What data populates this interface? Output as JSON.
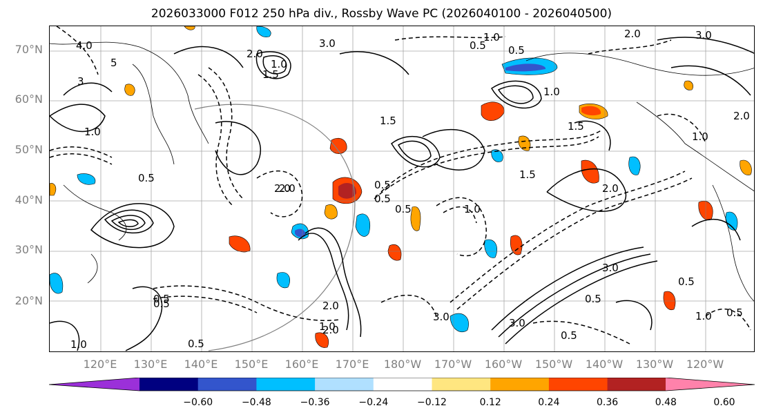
{
  "title": "2026033000 F012 250 hPa div., Rossby Wave PC (2026040100 - 2026040500)",
  "lat_labels": [
    "70°N",
    "60°N",
    "50°N",
    "40°N",
    "30°N",
    "20°N"
  ],
  "lon_labels": [
    "120°E",
    "130°E",
    "140°E",
    "150°E",
    "160°E",
    "170°E",
    "180°W",
    "170°W",
    "160°W",
    "150°W",
    "140°W",
    "130°W",
    "120°W"
  ],
  "colorbar": {
    "colors": [
      "#9b30d9",
      "#000080",
      "#3355cc",
      "#00bfff",
      "#b0e0ff",
      "#ffffff",
      "#ffe680",
      "#ffa500",
      "#ff4500",
      "#b22222",
      "#ff82ab"
    ],
    "tick_labels": [
      "−0.60",
      "−0.48",
      "−0.36",
      "−0.24",
      "−0.12",
      "0.12",
      "0.24",
      "0.36",
      "0.48",
      "0.60"
    ]
  },
  "contour_labels": [
    "4.0",
    "1.5",
    "5",
    "3",
    "2.0",
    "0.5",
    "1.0",
    "2.0",
    "3.0",
    "2.0",
    "1.0",
    "1.5",
    "0.5",
    "0.5",
    "1.5",
    "0.5",
    "2.0",
    "0.5",
    "3.0",
    "0.5",
    "1.0",
    "2.0",
    "1.0",
    "0.5",
    "3.0",
    "0.5",
    "0.5",
    "1.0",
    "1.0",
    "1.5",
    "0.5",
    "2.0",
    "3.0",
    "2.0",
    "1.0",
    "0.5",
    "2.0",
    "3.0",
    "0.5",
    "1.0",
    "0.5",
    "1.0"
  ]
}
